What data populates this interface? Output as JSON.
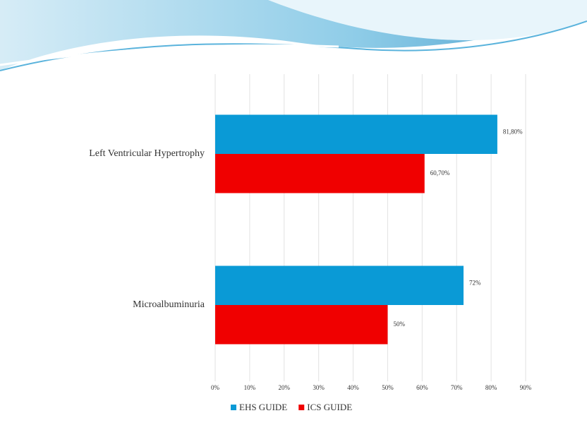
{
  "chart_data": {
    "type": "bar",
    "orientation": "horizontal",
    "categories": [
      "Left Ventricular Hypertrophy",
      "Microalbuminuria"
    ],
    "series": [
      {
        "name": "EHS GUIDE",
        "color": "#0a9ad6",
        "values": [
          81.8,
          72
        ],
        "value_labels": [
          "81,80%",
          "72%"
        ]
      },
      {
        "name": "ICS GUIDE",
        "color": "#f00000",
        "values": [
          60.7,
          50
        ],
        "value_labels": [
          "60,70%",
          "50%"
        ]
      }
    ],
    "xlim": [
      0,
      90
    ],
    "xticks": [
      {
        "value": 0,
        "label": "0%"
      },
      {
        "value": 10,
        "label": "10%"
      },
      {
        "value": 20,
        "label": "20%"
      },
      {
        "value": 30,
        "label": "30%"
      },
      {
        "value": 40,
        "label": "40%"
      },
      {
        "value": 50,
        "label": "50%"
      },
      {
        "value": 60,
        "label": "60%"
      },
      {
        "value": 70,
        "label": "70%"
      },
      {
        "value": 80,
        "label": "80%"
      },
      {
        "value": 90,
        "label": "90%"
      }
    ],
    "grid": true,
    "legend": "bottom"
  }
}
